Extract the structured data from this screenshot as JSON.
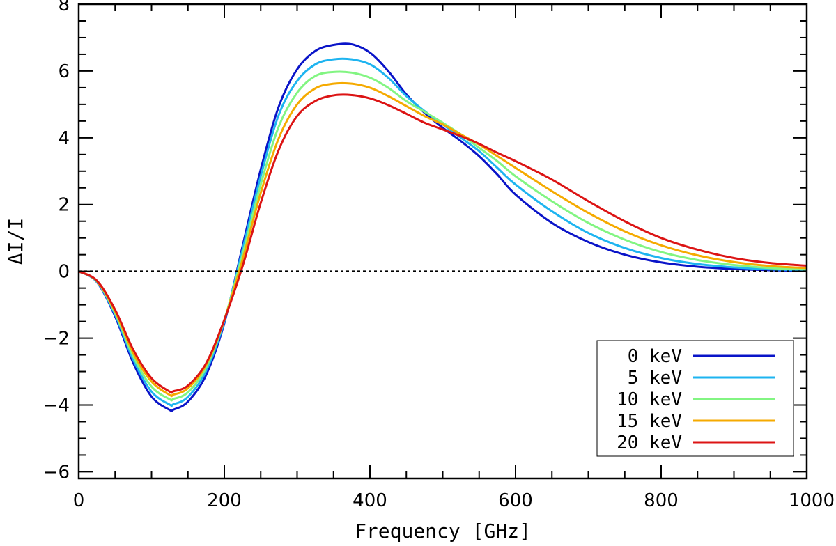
{
  "chart_data": {
    "type": "line",
    "title": "",
    "xlabel": "Frequency [GHz]",
    "ylabel": "ΔI/I",
    "xlim": [
      0,
      1000
    ],
    "ylim": [
      -6.2,
      8
    ],
    "xticks": [
      0,
      200,
      400,
      600,
      800,
      1000
    ],
    "xtick_labels": [
      "0",
      "200",
      "400",
      "600",
      "800",
      "1000"
    ],
    "yticks": [
      -6,
      -4,
      -2,
      0,
      2,
      4,
      6,
      8
    ],
    "ytick_labels": [
      "−6",
      "−4",
      "−2",
      "0",
      "2",
      "4",
      "6",
      "8"
    ],
    "grid": false,
    "legend_position": "bottom-right",
    "reference_line": {
      "y": 0,
      "style": "dotted",
      "color": "#000000"
    },
    "x": [
      0,
      25,
      50,
      75,
      100,
      125,
      130,
      150,
      175,
      200,
      225,
      250,
      275,
      300,
      325,
      350,
      375,
      400,
      425,
      450,
      475,
      500,
      525,
      550,
      575,
      600,
      650,
      700,
      750,
      800,
      850,
      900,
      950,
      1000
    ],
    "series": [
      {
        "name": "0 keV",
        "color": "#0a14c8",
        "values": [
          0,
          -0.32,
          -1.35,
          -2.75,
          -3.75,
          -4.15,
          -4.14,
          -3.9,
          -3.1,
          -1.55,
          0.75,
          3.05,
          4.95,
          6.05,
          6.6,
          6.78,
          6.8,
          6.55,
          6.0,
          5.3,
          4.75,
          4.3,
          3.9,
          3.45,
          2.9,
          2.3,
          1.45,
          0.88,
          0.5,
          0.27,
          0.14,
          0.07,
          0.035,
          0.015
        ]
      },
      {
        "name": "5 keV",
        "color": "#1eb4f0",
        "values": [
          0,
          -0.31,
          -1.3,
          -2.65,
          -3.6,
          -3.99,
          -3.98,
          -3.76,
          -2.98,
          -1.5,
          0.65,
          2.85,
          4.7,
          5.7,
          6.2,
          6.35,
          6.35,
          6.2,
          5.8,
          5.25,
          4.8,
          4.4,
          4.0,
          3.6,
          3.1,
          2.6,
          1.8,
          1.15,
          0.7,
          0.4,
          0.22,
          0.12,
          0.06,
          0.03
        ]
      },
      {
        "name": "10 keV",
        "color": "#82f582",
        "values": [
          0,
          -0.3,
          -1.25,
          -2.55,
          -3.45,
          -3.83,
          -3.82,
          -3.62,
          -2.88,
          -1.45,
          0.5,
          2.6,
          4.35,
          5.35,
          5.85,
          5.97,
          5.95,
          5.8,
          5.5,
          5.1,
          4.78,
          4.45,
          4.1,
          3.7,
          3.3,
          2.85,
          2.1,
          1.45,
          0.95,
          0.58,
          0.34,
          0.19,
          0.1,
          0.06
        ]
      },
      {
        "name": "15 keV",
        "color": "#f5aa00",
        "values": [
          0,
          -0.29,
          -1.2,
          -2.45,
          -3.3,
          -3.7,
          -3.69,
          -3.5,
          -2.8,
          -1.45,
          0.35,
          2.35,
          4.0,
          5.0,
          5.48,
          5.62,
          5.62,
          5.5,
          5.25,
          4.95,
          4.65,
          4.4,
          4.1,
          3.8,
          3.45,
          3.1,
          2.4,
          1.75,
          1.2,
          0.78,
          0.48,
          0.28,
          0.16,
          0.1
        ]
      },
      {
        "name": "20 keV",
        "color": "#dc1414",
        "values": [
          0,
          -0.28,
          -1.15,
          -2.35,
          -3.2,
          -3.6,
          -3.59,
          -3.42,
          -2.75,
          -1.45,
          0.15,
          2.05,
          3.65,
          4.65,
          5.1,
          5.27,
          5.28,
          5.18,
          4.98,
          4.72,
          4.45,
          4.25,
          4.05,
          3.82,
          3.55,
          3.3,
          2.75,
          2.1,
          1.5,
          1.0,
          0.65,
          0.4,
          0.25,
          0.17
        ]
      }
    ]
  }
}
